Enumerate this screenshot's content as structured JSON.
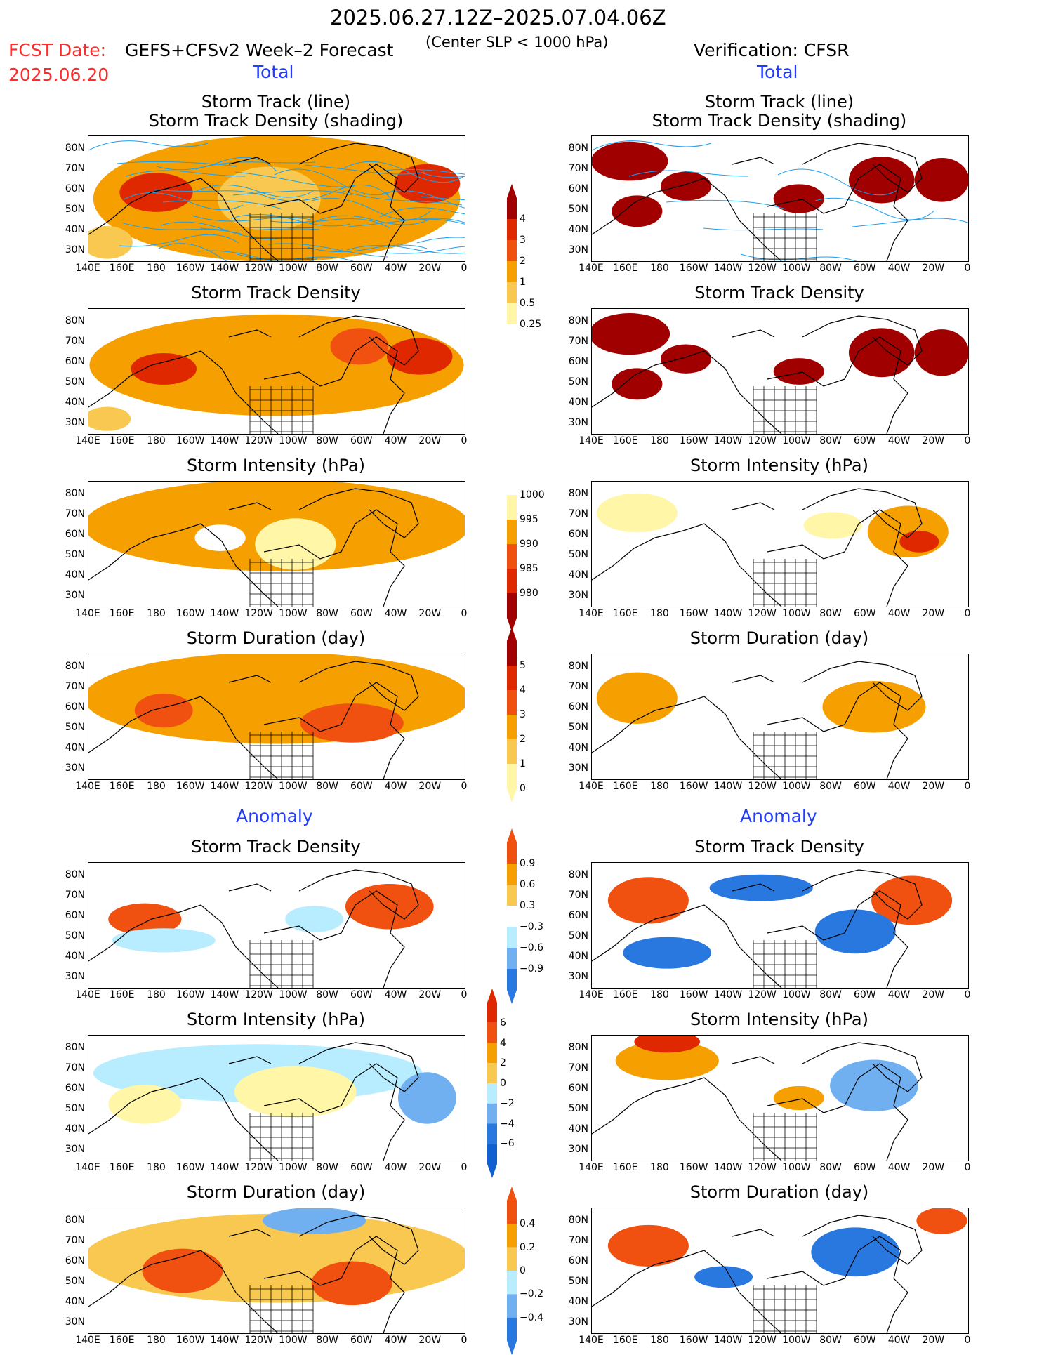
{
  "header": {
    "date_range": "2025.06.27.12Z–2025.07.04.06Z",
    "fcst_date_label": "FCST Date:",
    "fcst_date_value": "2025.06.20",
    "forecast_label": "GEFS+CFSv2 Week–2 Forecast",
    "center_slp": "(Center SLP < 1000 hPa)",
    "verification": "Verification: CFSR"
  },
  "sections": {
    "total": "Total",
    "anomaly": "Anomaly"
  },
  "panel_titles": {
    "track_line": "Storm Track (line)",
    "track_shading": "Storm Track Density (shading)",
    "density": "Storm Track Density",
    "intensity": "Storm Intensity (hPa)",
    "duration": "Storm Duration (day)"
  },
  "axes": {
    "lat_ticks": [
      "80N",
      "70N",
      "60N",
      "50N",
      "40N",
      "30N"
    ],
    "lon_ticks": [
      "140E",
      "160E",
      "180",
      "160W",
      "140W",
      "120W",
      "100W",
      "80W",
      "60W",
      "40W",
      "20W",
      "0"
    ]
  },
  "colorbars": {
    "density_total": [
      "4",
      "3",
      "2",
      "1",
      "0.5",
      "0.25"
    ],
    "intensity_total": [
      "1000",
      "995",
      "990",
      "985",
      "980"
    ],
    "duration_total": [
      "5",
      "4",
      "3",
      "2",
      "1",
      "0"
    ],
    "density_anom": [
      "0.9",
      "0.6",
      "0.3",
      "−0.3",
      "−0.6",
      "−0.9"
    ],
    "intensity_anom": [
      "6",
      "4",
      "2",
      "0",
      "−2",
      "−4",
      "−6"
    ],
    "duration_anom": [
      "0.4",
      "0.2",
      "0",
      "−0.2",
      "−0.4"
    ]
  },
  "colors": {
    "dark_red": "#a00000",
    "red": "#e02800",
    "orange_red": "#f05010",
    "orange": "#f5a000",
    "light_orange": "#f8c850",
    "pale_yellow": "#fff6a8",
    "light_blue": "#b8ecff",
    "mid_blue": "#70b0f0",
    "blue": "#2878e0",
    "track_blue": "#1aa0f0"
  }
}
